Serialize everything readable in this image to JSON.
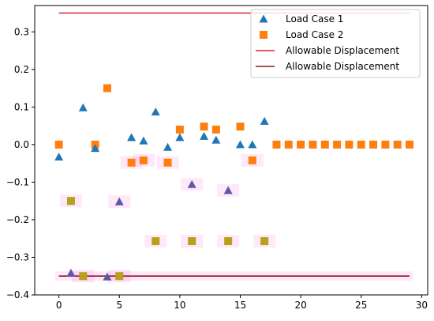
{
  "chart_data": {
    "type": "scatter",
    "title": "",
    "xlabel": "",
    "ylabel": "",
    "xlim": [
      -2,
      30.5
    ],
    "ylim": [
      -0.4,
      0.37
    ],
    "x_ticks": [
      0,
      5,
      10,
      15,
      20,
      25,
      30
    ],
    "y_ticks": [
      -0.4,
      -0.3,
      -0.2,
      -0.1,
      0.0,
      0.1,
      0.2,
      0.3
    ],
    "x_tick_labels": [
      "0",
      "5",
      "10",
      "15",
      "20",
      "25",
      "30"
    ],
    "y_tick_labels": [
      "−0.4",
      "−0.3",
      "−0.2",
      "−0.1",
      "0.0",
      "0.1",
      "0.2",
      "0.3"
    ],
    "grid": false,
    "legend": {
      "placement": "top-right",
      "entries": [
        "Load Case 1",
        "Load Case 2",
        "Allowable Displacement",
        "Allowable Displacement"
      ]
    },
    "series": [
      {
        "name": "Load Case 1",
        "marker": "triangle",
        "color": "#1f77b4",
        "x": [
          0,
          1,
          2,
          3,
          4,
          5,
          6,
          7,
          8,
          9,
          10,
          11,
          12,
          13,
          14,
          15,
          16,
          17
        ],
        "y": [
          -0.033,
          -0.342,
          0.098,
          -0.01,
          -0.352,
          -0.152,
          0.019,
          0.01,
          0.087,
          -0.007,
          0.019,
          -0.106,
          0.022,
          0.012,
          -0.122,
          0.0,
          0.0,
          0.062
        ]
      },
      {
        "name": "Load Case 2",
        "marker": "square",
        "color": "#ff7f0e",
        "x": [
          0,
          1,
          2,
          3,
          4,
          5,
          6,
          7,
          8,
          9,
          10,
          11,
          12,
          13,
          14,
          15,
          16,
          17,
          18,
          19,
          20,
          21,
          22,
          23,
          24,
          25,
          26,
          27,
          28,
          29
        ],
        "y": [
          0.0,
          -0.15,
          -0.35,
          0.0,
          0.15,
          -0.35,
          -0.048,
          -0.042,
          -0.257,
          -0.048,
          0.04,
          -0.257,
          0.048,
          0.04,
          -0.257,
          0.048,
          -0.042,
          -0.257,
          0.0,
          0.0,
          0.0,
          0.0,
          0.0,
          0.0,
          0.0,
          0.0,
          0.0,
          0.0,
          0.0,
          0.0
        ]
      },
      {
        "name": "Allowable Displacement",
        "marker": "line",
        "color": "#d62728",
        "x": [
          0,
          29
        ],
        "y": [
          0.35,
          0.35
        ]
      },
      {
        "name": "Allowable Displacement",
        "marker": "line",
        "color": "#8b1a1a",
        "x": [
          0,
          29
        ],
        "y": [
          -0.35,
          -0.35
        ]
      }
    ],
    "colors": {
      "load_case_1": "#1f77b4",
      "load_case_2": "#ff7f0e",
      "allowable_upper": "#d62728",
      "allowable_lower": "#8b1a1a",
      "highlight": "#ff00c8",
      "overlap_triangle": "#5a5aa8",
      "overlap_square": "#b5a21a"
    }
  }
}
